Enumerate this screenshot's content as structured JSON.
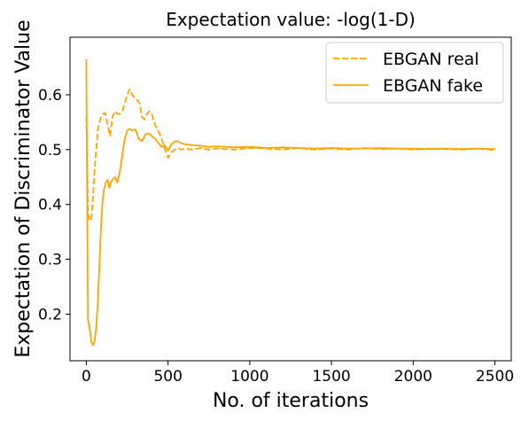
{
  "chart_data": {
    "type": "line",
    "title": "Expectation value: -log(1-D)",
    "xlabel": "No. of iterations",
    "ylabel": "Expectation of Discriminator Value",
    "xlim": [
      -100,
      2600
    ],
    "ylim": [
      0.115,
      0.705
    ],
    "x_ticks": [
      0,
      500,
      1000,
      1500,
      2000,
      2500
    ],
    "x_tick_labels": [
      "0",
      "500",
      "1000",
      "1500",
      "2000",
      "2500"
    ],
    "y_ticks": [
      0.2,
      0.3,
      0.4,
      0.5,
      0.6
    ],
    "y_tick_labels": [
      "0.2",
      "0.3",
      "0.4",
      "0.5",
      "0.6"
    ],
    "grid": false,
    "legend_position": "top-right",
    "series": [
      {
        "name": "EBGAN real",
        "color": "#ffa500",
        "style": "dashed",
        "x": [
          0,
          5,
          10,
          20,
          30,
          40,
          50,
          60,
          70,
          80,
          90,
          100,
          115,
          130,
          145,
          160,
          175,
          190,
          205,
          220,
          235,
          250,
          265,
          280,
          295,
          310,
          325,
          340,
          355,
          370,
          385,
          400,
          420,
          440,
          460,
          480,
          500,
          520,
          540,
          560,
          580,
          600,
          650,
          700,
          750,
          800,
          900,
          1000,
          1100,
          1200,
          1300,
          1400,
          1500,
          1600,
          1700,
          1800,
          1900,
          2000,
          2100,
          2200,
          2300,
          2400,
          2500
        ],
        "y": [
          0.56,
          0.47,
          0.385,
          0.37,
          0.372,
          0.41,
          0.46,
          0.5,
          0.535,
          0.55,
          0.56,
          0.565,
          0.567,
          0.545,
          0.525,
          0.56,
          0.57,
          0.565,
          0.565,
          0.57,
          0.585,
          0.6,
          0.61,
          0.6,
          0.595,
          0.59,
          0.585,
          0.56,
          0.555,
          0.565,
          0.57,
          0.565,
          0.545,
          0.535,
          0.52,
          0.5,
          0.485,
          0.495,
          0.5,
          0.503,
          0.5,
          0.502,
          0.5,
          0.503,
          0.5,
          0.502,
          0.5,
          0.503,
          0.502,
          0.5,
          0.503,
          0.5,
          0.502,
          0.5,
          0.503,
          0.501,
          0.502,
          0.5,
          0.502,
          0.501,
          0.5,
          0.502,
          0.499
        ]
      },
      {
        "name": "EBGAN fake",
        "color": "#ffa500",
        "style": "solid",
        "x": [
          0,
          5,
          10,
          20,
          30,
          40,
          50,
          60,
          70,
          80,
          90,
          100,
          110,
          120,
          130,
          140,
          150,
          160,
          175,
          190,
          205,
          220,
          235,
          250,
          265,
          280,
          300,
          320,
          340,
          360,
          380,
          400,
          420,
          440,
          460,
          480,
          500,
          520,
          540,
          560,
          580,
          600,
          650,
          700,
          750,
          800,
          900,
          1000,
          1100,
          1200,
          1300,
          1400,
          1500,
          1600,
          1700,
          1800,
          1900,
          2000,
          2100,
          2200,
          2300,
          2400,
          2500
        ],
        "y": [
          0.665,
          0.4,
          0.19,
          0.175,
          0.15,
          0.143,
          0.15,
          0.175,
          0.22,
          0.29,
          0.36,
          0.41,
          0.43,
          0.44,
          0.445,
          0.43,
          0.44,
          0.445,
          0.45,
          0.44,
          0.46,
          0.49,
          0.52,
          0.535,
          0.538,
          0.535,
          0.537,
          0.52,
          0.515,
          0.527,
          0.53,
          0.525,
          0.52,
          0.512,
          0.505,
          0.508,
          0.498,
          0.51,
          0.515,
          0.515,
          0.512,
          0.51,
          0.508,
          0.507,
          0.505,
          0.506,
          0.504,
          0.505,
          0.503,
          0.504,
          0.503,
          0.502,
          0.503,
          0.502,
          0.502,
          0.503,
          0.502,
          0.502,
          0.501,
          0.502,
          0.501,
          0.502,
          0.501
        ]
      }
    ]
  }
}
